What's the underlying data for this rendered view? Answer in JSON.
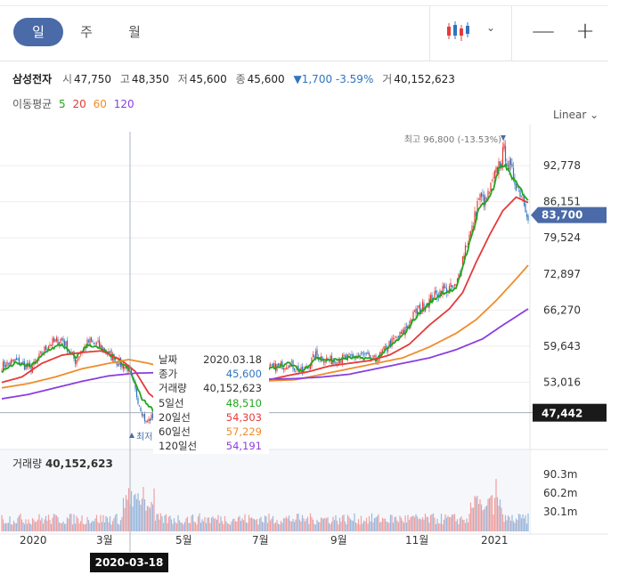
{
  "tabs": [
    {
      "label": "일",
      "active": true
    },
    {
      "label": "주",
      "active": false
    },
    {
      "label": "월",
      "active": false
    }
  ],
  "toolbar": {
    "chevron": "⌄",
    "zoom_out": "—",
    "zoom_in": "+",
    "chart_type_icon": "candlestick-icon"
  },
  "stock": {
    "name": "삼성전자",
    "open_label": "시",
    "open": "47,750",
    "high_label": "고",
    "high": "48,350",
    "low_label": "저",
    "low": "45,600",
    "close_label": "종",
    "close": "45,600",
    "change": "▼1,700 -3.59%",
    "volume_label": "거",
    "volume": "40,152,623"
  },
  "ma": {
    "label": "이동평균",
    "periods": [
      {
        "value": "5",
        "color": "#22a51f"
      },
      {
        "value": "20",
        "color": "#e53a3a"
      },
      {
        "value": "60",
        "color": "#f08c2a"
      },
      {
        "value": "120",
        "color": "#8a3ee0"
      }
    ]
  },
  "scale_label": "Linear",
  "tooltip": {
    "rows": [
      {
        "label": "날짜",
        "value": "2020.03.18",
        "color": "#333333"
      },
      {
        "label": "종가",
        "value": "45,600",
        "color": "#2f74c0"
      },
      {
        "label": "거래량",
        "value": "40,152,623",
        "color": "#333333"
      },
      {
        "label": "5일선",
        "value": "48,510",
        "color": "#22a51f"
      },
      {
        "label": "20일선",
        "value": "54,303",
        "color": "#e53a3a"
      },
      {
        "label": "60일선",
        "value": "57,229",
        "color": "#f08c2a"
      },
      {
        "label": "120일선",
        "value": "54,191",
        "color": "#8a3ee0"
      }
    ]
  },
  "volume_panel": {
    "label": "거래량",
    "value": "40,152,623"
  },
  "crosshair_date": "2020-03-18",
  "chart_data": {
    "type": "candlestick",
    "y_ticks": [
      "92,778",
      "86,151",
      "79,524",
      "72,897",
      "66,270",
      "59,643",
      "53,016"
    ],
    "y_range": [
      42000,
      99000
    ],
    "x_ticks": [
      "2020",
      "3월",
      "5월",
      "7월",
      "9월",
      "11월",
      "2021"
    ],
    "current_price": "83,700",
    "crosshair_price": "47,442",
    "max_annotation": "최고 96,800 (-13.53%)",
    "min_annotation": "최저",
    "min_annotation_pct": "24%",
    "volume_ticks": [
      "90.3m",
      "60.2m",
      "30.1m"
    ],
    "volume_max": 100,
    "close_anchors": [
      [
        0,
        56000
      ],
      [
        10,
        57000
      ],
      [
        22,
        55500
      ],
      [
        35,
        60000
      ],
      [
        45,
        61000
      ],
      [
        55,
        57000
      ],
      [
        65,
        60500
      ],
      [
        75,
        59500
      ],
      [
        85,
        57000
      ],
      [
        95,
        55500
      ],
      [
        103,
        49000
      ],
      [
        108,
        45600
      ],
      [
        118,
        48000
      ],
      [
        128,
        49500
      ],
      [
        140,
        50000
      ],
      [
        155,
        52500
      ],
      [
        170,
        53500
      ],
      [
        185,
        55500
      ],
      [
        200,
        55500
      ],
      [
        215,
        56500
      ],
      [
        225,
        54800
      ],
      [
        235,
        58000
      ],
      [
        245,
        57000
      ],
      [
        260,
        57500
      ],
      [
        270,
        58000
      ],
      [
        280,
        57000
      ],
      [
        290,
        60000
      ],
      [
        300,
        62000
      ],
      [
        310,
        66000
      ],
      [
        320,
        68000
      ],
      [
        330,
        70000
      ],
      [
        340,
        70500
      ],
      [
        347,
        78000
      ],
      [
        352,
        81000
      ],
      [
        357,
        87000
      ],
      [
        362,
        86000
      ],
      [
        368,
        90000
      ],
      [
        372,
        93000
      ],
      [
        376,
        95500
      ],
      [
        380,
        92500
      ],
      [
        385,
        89500
      ],
      [
        390,
        87000
      ],
      [
        394,
        83700
      ]
    ],
    "ma_series": [
      {
        "name": "5일선",
        "color": "#22a51f",
        "anchors": [
          [
            0,
            55000
          ],
          [
            10,
            56500
          ],
          [
            22,
            56000
          ],
          [
            35,
            59000
          ],
          [
            45,
            60000
          ],
          [
            55,
            57500
          ],
          [
            65,
            60000
          ],
          [
            75,
            59000
          ],
          [
            85,
            57500
          ],
          [
            95,
            55500
          ],
          [
            105,
            50000
          ],
          [
            115,
            47500
          ],
          [
            125,
            49000
          ],
          [
            140,
            50000
          ],
          [
            155,
            52000
          ],
          [
            170,
            53000
          ],
          [
            185,
            55000
          ],
          [
            200,
            55500
          ],
          [
            215,
            56500
          ],
          [
            225,
            55000
          ],
          [
            235,
            57500
          ],
          [
            245,
            57000
          ],
          [
            260,
            57500
          ],
          [
            270,
            57500
          ],
          [
            280,
            57200
          ],
          [
            290,
            59500
          ],
          [
            300,
            61500
          ],
          [
            310,
            65000
          ],
          [
            320,
            67500
          ],
          [
            330,
            69500
          ],
          [
            340,
            70000
          ],
          [
            347,
            76000
          ],
          [
            352,
            80000
          ],
          [
            357,
            85000
          ],
          [
            362,
            86000
          ],
          [
            368,
            88500
          ],
          [
            372,
            92000
          ],
          [
            376,
            93000
          ],
          [
            380,
            91500
          ],
          [
            385,
            89500
          ],
          [
            394,
            86500
          ]
        ]
      },
      {
        "name": "20일선",
        "color": "#e53a3a",
        "anchors": [
          [
            0,
            53000
          ],
          [
            15,
            54000
          ],
          [
            30,
            56500
          ],
          [
            45,
            58000
          ],
          [
            60,
            58500
          ],
          [
            75,
            58800
          ],
          [
            90,
            57000
          ],
          [
            100,
            55000
          ],
          [
            110,
            51000
          ],
          [
            120,
            49000
          ],
          [
            130,
            48500
          ],
          [
            150,
            50000
          ],
          [
            170,
            51500
          ],
          [
            185,
            52800
          ],
          [
            200,
            53500
          ],
          [
            215,
            54300
          ],
          [
            230,
            55000
          ],
          [
            245,
            56000
          ],
          [
            260,
            56500
          ],
          [
            275,
            57000
          ],
          [
            290,
            58000
          ],
          [
            305,
            60000
          ],
          [
            320,
            63500
          ],
          [
            335,
            66500
          ],
          [
            345,
            69500
          ],
          [
            355,
            75000
          ],
          [
            365,
            80000
          ],
          [
            375,
            84500
          ],
          [
            385,
            87000
          ],
          [
            394,
            86000
          ]
        ]
      },
      {
        "name": "60일선",
        "color": "#f08c2a",
        "anchors": [
          [
            0,
            52000
          ],
          [
            20,
            52800
          ],
          [
            40,
            54000
          ],
          [
            60,
            55500
          ],
          [
            80,
            56500
          ],
          [
            95,
            57200
          ],
          [
            110,
            56500
          ],
          [
            125,
            55500
          ],
          [
            140,
            54500
          ],
          [
            160,
            53800
          ],
          [
            180,
            53500
          ],
          [
            200,
            53300
          ],
          [
            220,
            53500
          ],
          [
            240,
            54500
          ],
          [
            260,
            55500
          ],
          [
            280,
            56500
          ],
          [
            300,
            57500
          ],
          [
            320,
            59500
          ],
          [
            340,
            62000
          ],
          [
            355,
            64500
          ],
          [
            370,
            68000
          ],
          [
            385,
            72000
          ],
          [
            394,
            74500
          ]
        ]
      },
      {
        "name": "120일선",
        "color": "#8a3ee0",
        "anchors": [
          [
            0,
            50000
          ],
          [
            20,
            50800
          ],
          [
            40,
            52000
          ],
          [
            60,
            53200
          ],
          [
            80,
            54200
          ],
          [
            100,
            54700
          ],
          [
            120,
            54800
          ],
          [
            140,
            54600
          ],
          [
            160,
            54200
          ],
          [
            180,
            53800
          ],
          [
            200,
            53600
          ],
          [
            220,
            53700
          ],
          [
            240,
            54000
          ],
          [
            260,
            54500
          ],
          [
            280,
            55500
          ],
          [
            300,
            56500
          ],
          [
            320,
            57500
          ],
          [
            340,
            59000
          ],
          [
            360,
            61000
          ],
          [
            375,
            63500
          ],
          [
            394,
            66500
          ]
        ]
      }
    ]
  }
}
